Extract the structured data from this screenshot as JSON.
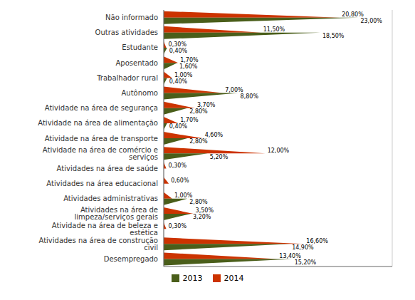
{
  "chart_data": {
    "type": "bar",
    "orientation": "horizontal",
    "categories": [
      "Não informado",
      "Outras atividades",
      "Estudante",
      "Aposentado",
      "Trabalhador rural",
      "Autônomo",
      "Atividade na área de segurança",
      "Atividade na área de alimentação",
      "Atividade na área de transporte",
      "Atividade na área de comércio e serviços",
      "Atividades na área de saúde",
      "Atividades na área educacional",
      "Atividades administrativas",
      "Atividades na área de limpeza/serviços gerais",
      "Atividade na área de beleza e estética",
      "Atividades na área de construção civil",
      "Desempregado"
    ],
    "series": [
      {
        "name": "2013",
        "color": "#4a5e1a",
        "values": [
          23.0,
          18.5,
          0.4,
          1.6,
          0.4,
          8.8,
          2.8,
          0.4,
          2.8,
          5.2,
          0.0,
          0.0,
          2.8,
          3.2,
          0.0,
          14.9,
          15.2
        ],
        "value_labels": [
          "23,00%",
          "18,50%",
          "0,40%",
          "1,60%",
          "0,40%",
          "8,80%",
          "2,80%",
          "0,40%",
          "2,80%",
          "5,20%",
          null,
          null,
          "2,80%",
          "3,20%",
          null,
          "14,90%",
          "15,20%"
        ]
      },
      {
        "name": "2014",
        "color": "#cc3300",
        "values": [
          20.8,
          11.5,
          0.3,
          1.7,
          1.0,
          7.0,
          3.7,
          1.7,
          4.6,
          12.0,
          0.3,
          0.6,
          1.0,
          3.5,
          0.3,
          16.6,
          13.4
        ],
        "value_labels": [
          "20,80%",
          "11,50%",
          "0,30%",
          "1,70%",
          "1,00%",
          "7,00%",
          "3,70%",
          "1,70%",
          "4,60%",
          "12,00%",
          "0,30%",
          "0,60%",
          "1,00%",
          "3,50%",
          "0,30%",
          "16,60%",
          "13,40%"
        ]
      }
    ],
    "xlim": [
      0,
      27
    ],
    "xticks": [
      0,
      5,
      10,
      15,
      20,
      25
    ],
    "grid": true,
    "data_labels": true,
    "tick_labels": "y",
    "legend": "bottom"
  }
}
